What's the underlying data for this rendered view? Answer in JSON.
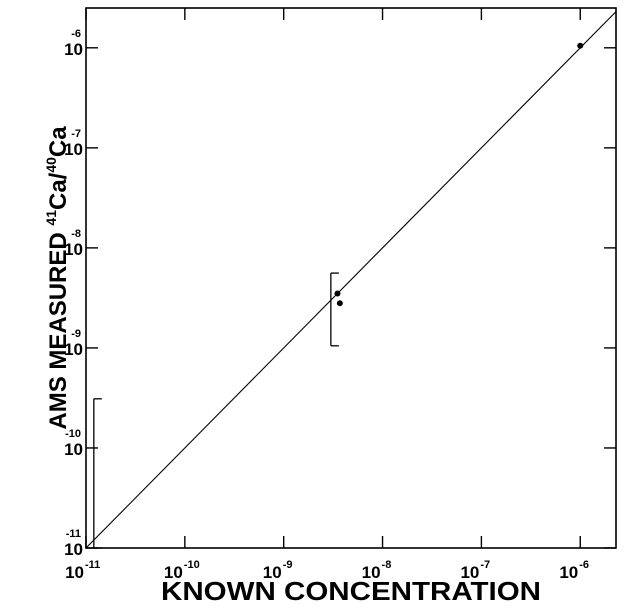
{
  "chart_data": {
    "type": "scatter",
    "xlabel": "KNOWN CONCENTRATION",
    "ylabel": {
      "prefix": "AMS   MEASURED ",
      "iso1": "41",
      "el1": "Ca/",
      "iso2": "40",
      "el2": "Ca"
    },
    "x_scale": "log",
    "y_scale": "log",
    "xlim": [
      1e-11,
      2.3e-06
    ],
    "ylim": [
      1e-11,
      2.5e-06
    ],
    "x_ticks": [
      {
        "value": 1e-11,
        "base": "10",
        "exp": "-11"
      },
      {
        "value": 1e-10,
        "base": "10",
        "exp": "-10"
      },
      {
        "value": 1e-09,
        "base": "10",
        "exp": "-9"
      },
      {
        "value": 1e-08,
        "base": "10",
        "exp": "-8"
      },
      {
        "value": 1e-07,
        "base": "10",
        "exp": "-7"
      },
      {
        "value": 1e-06,
        "base": "10",
        "exp": "-6"
      }
    ],
    "y_ticks": [
      {
        "value": 1e-11,
        "base": "10",
        "exp": "-11"
      },
      {
        "value": 1e-10,
        "base": "10",
        "exp": "-10"
      },
      {
        "value": 1e-09,
        "base": "10",
        "exp": "-9"
      },
      {
        "value": 1e-08,
        "base": "10",
        "exp": "-8"
      },
      {
        "value": 1e-07,
        "base": "10",
        "exp": "-7"
      },
      {
        "value": 1e-06,
        "base": "10",
        "exp": "-6"
      }
    ],
    "reference_line": {
      "x": [
        1e-11,
        2.3e-06
      ],
      "y": [
        1e-11,
        2.3e-06
      ]
    },
    "points": [
      {
        "x": 3.5e-09,
        "y": 3.5e-09
      },
      {
        "x": 3.7e-09,
        "y": 2.8e-09
      },
      {
        "x": 1e-06,
        "y": 1.05e-06
      }
    ],
    "error_bars": [
      {
        "x": 3e-09,
        "y_low": 1.05e-09,
        "y_high": 5.6e-09
      },
      {
        "x": 1.2e-11,
        "y_low": 1e-11,
        "y_high": 3.1e-10
      }
    ],
    "grid": false,
    "legend": "none"
  }
}
